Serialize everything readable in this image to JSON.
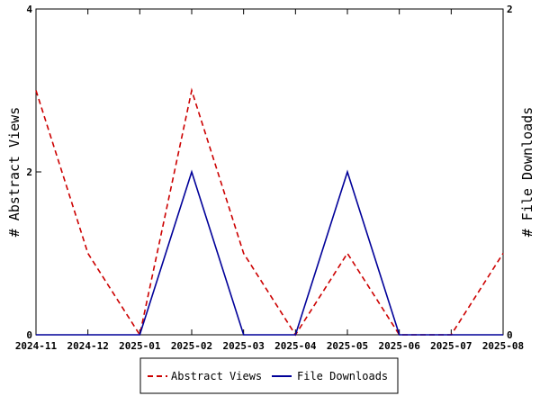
{
  "chart_data": {
    "type": "line",
    "x": [
      "2024-11",
      "2024-12",
      "2025-01",
      "2025-02",
      "2025-03",
      "2025-04",
      "2025-05",
      "2025-06",
      "2025-07",
      "2025-08"
    ],
    "series": [
      {
        "name": "Abstract Views",
        "axis": "left",
        "color": "#cc0000",
        "dash": true,
        "values": [
          3,
          1,
          0,
          3,
          1,
          0,
          1,
          0,
          0,
          1
        ]
      },
      {
        "name": "File Downloads",
        "axis": "right",
        "color": "#000099",
        "dash": false,
        "values": [
          0,
          0,
          0,
          1,
          0,
          0,
          1,
          0,
          0,
          0
        ]
      }
    ],
    "ylabel_left": "# Abstract Views",
    "ylabel_right": "# File Downloads",
    "ylim_left": [
      0,
      4
    ],
    "ylim_right": [
      0,
      2
    ],
    "yticks_left": [
      "0",
      "2",
      "4"
    ],
    "yticks_right": [
      "0",
      "2"
    ],
    "grid": false,
    "legend_position": "bottom"
  }
}
